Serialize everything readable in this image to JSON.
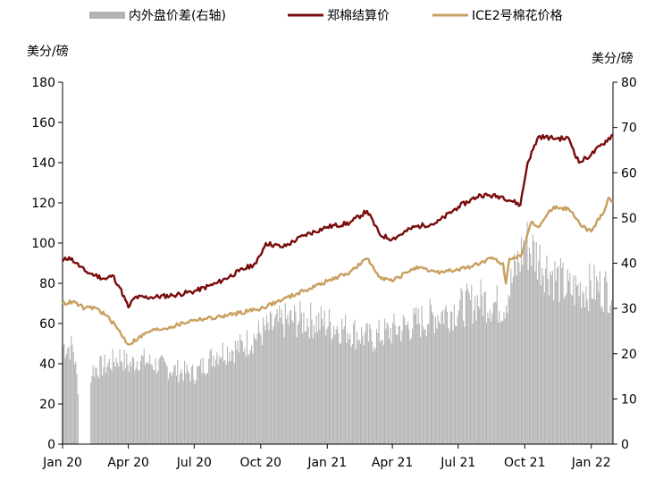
{
  "chart_data": {
    "type": "line",
    "left_unit": "美分/磅",
    "right_unit": "美分/磅",
    "x_ticks": [
      "Jan 20",
      "Apr 20",
      "Jul 20",
      "Oct 20",
      "Jan 21",
      "Apr 21",
      "Jul 21",
      "Oct 21",
      "Jan 22"
    ],
    "y_left": {
      "min": 0,
      "max": 180,
      "step": 20,
      "ticks": [
        "0",
        "20",
        "40",
        "60",
        "80",
        "100",
        "120",
        "140",
        "160",
        "180"
      ]
    },
    "y_right": {
      "min": 0,
      "max": 80,
      "step": 10,
      "ticks": [
        "0",
        "10",
        "20",
        "30",
        "40",
        "50",
        "60",
        "70",
        "80"
      ]
    },
    "x_range": [
      "2020-01-01",
      "2022-01-31"
    ],
    "legend_position": "top",
    "grid": false,
    "series": [
      {
        "name": "内外盘价差(右轴)",
        "type": "bar",
        "axis": "right",
        "color": "#b3b3b3",
        "points": [
          [
            "2020-01-01",
            22.5
          ],
          [
            "2020-01-15",
            22.0
          ],
          [
            "2020-02-01",
            0
          ],
          [
            "2020-02-10",
            17.0
          ],
          [
            "2020-03-01",
            18.0
          ],
          [
            "2020-03-20",
            20.0
          ],
          [
            "2020-04-01",
            18.0
          ],
          [
            "2020-04-15",
            19.5
          ],
          [
            "2020-05-01",
            18.5
          ],
          [
            "2020-06-01",
            17.0
          ],
          [
            "2020-07-01",
            16.0
          ],
          [
            "2020-08-01",
            21.0
          ],
          [
            "2020-09-01",
            22.0
          ],
          [
            "2020-10-01",
            25.5
          ],
          [
            "2020-11-01",
            28.0
          ],
          [
            "2020-12-01",
            28.5
          ],
          [
            "2021-01-01",
            27.5
          ],
          [
            "2021-02-01",
            26.0
          ],
          [
            "2021-03-01",
            24.0
          ],
          [
            "2021-04-01",
            26.0
          ],
          [
            "2021-05-01",
            27.5
          ],
          [
            "2021-06-01",
            29.5
          ],
          [
            "2021-07-01",
            31.0
          ],
          [
            "2021-08-01",
            33.0
          ],
          [
            "2021-09-01",
            31.5
          ],
          [
            "2021-10-01",
            46.0
          ],
          [
            "2021-11-01",
            40.0
          ],
          [
            "2021-12-01",
            35.0
          ],
          [
            "2022-01-01",
            36.0
          ],
          [
            "2022-01-31",
            35.0
          ]
        ]
      },
      {
        "name": "郑棉结算价",
        "type": "line",
        "axis": "left",
        "color": "#7a0c0c",
        "points": [
          [
            "2020-01-01",
            91
          ],
          [
            "2020-01-10",
            93
          ],
          [
            "2020-01-20",
            90
          ],
          [
            "2020-02-01",
            86
          ],
          [
            "2020-02-15",
            84
          ],
          [
            "2020-03-01",
            82
          ],
          [
            "2020-03-10",
            84
          ],
          [
            "2020-03-20",
            78
          ],
          [
            "2020-04-01",
            68
          ],
          [
            "2020-04-10",
            73
          ],
          [
            "2020-05-01",
            73
          ],
          [
            "2020-06-01",
            74
          ],
          [
            "2020-07-01",
            76
          ],
          [
            "2020-08-01",
            80
          ],
          [
            "2020-09-01",
            86
          ],
          [
            "2020-09-25",
            90
          ],
          [
            "2020-10-08",
            100
          ],
          [
            "2020-11-01",
            98
          ],
          [
            "2020-12-01",
            104
          ],
          [
            "2021-01-01",
            108
          ],
          [
            "2021-02-01",
            110
          ],
          [
            "2021-02-25",
            116
          ],
          [
            "2021-03-15",
            104
          ],
          [
            "2021-04-01",
            102
          ],
          [
            "2021-05-01",
            108
          ],
          [
            "2021-06-01",
            110
          ],
          [
            "2021-07-01",
            118
          ],
          [
            "2021-08-01",
            124
          ],
          [
            "2021-09-01",
            123
          ],
          [
            "2021-09-25",
            119
          ],
          [
            "2021-10-05",
            140
          ],
          [
            "2021-10-20",
            153
          ],
          [
            "2021-11-15",
            152
          ],
          [
            "2021-12-01",
            152
          ],
          [
            "2021-12-15",
            140
          ],
          [
            "2022-01-01",
            144
          ],
          [
            "2022-01-31",
            154
          ]
        ]
      },
      {
        "name": "ICE2号棉花价格",
        "type": "line",
        "axis": "right",
        "color": "#c8a060",
        "points": [
          [
            "2020-01-01",
            31
          ],
          [
            "2020-01-15",
            31.5
          ],
          [
            "2020-02-01",
            30
          ],
          [
            "2020-02-15",
            30.2
          ],
          [
            "2020-03-01",
            28.5
          ],
          [
            "2020-03-15",
            26
          ],
          [
            "2020-04-01",
            22
          ],
          [
            "2020-04-15",
            23.5
          ],
          [
            "2020-05-01",
            25
          ],
          [
            "2020-06-01",
            26
          ],
          [
            "2020-07-01",
            27.5
          ],
          [
            "2020-08-01",
            28
          ],
          [
            "2020-09-01",
            29
          ],
          [
            "2020-10-01",
            30
          ],
          [
            "2020-11-01",
            32
          ],
          [
            "2020-12-01",
            34
          ],
          [
            "2021-01-01",
            36
          ],
          [
            "2021-02-01",
            38
          ],
          [
            "2021-02-25",
            41
          ],
          [
            "2021-03-15",
            37
          ],
          [
            "2021-04-01",
            36
          ],
          [
            "2021-05-01",
            39
          ],
          [
            "2021-06-01",
            38
          ],
          [
            "2021-07-01",
            38.5
          ],
          [
            "2021-08-01",
            40
          ],
          [
            "2021-08-15",
            41
          ],
          [
            "2021-09-01",
            40
          ],
          [
            "2021-09-05",
            35.5
          ],
          [
            "2021-09-10",
            41
          ],
          [
            "2021-09-25",
            41.5
          ],
          [
            "2021-10-10",
            49
          ],
          [
            "2021-10-20",
            48
          ],
          [
            "2021-11-10",
            52.5
          ],
          [
            "2021-12-01",
            52
          ],
          [
            "2021-12-10",
            50
          ],
          [
            "2021-12-20",
            48
          ],
          [
            "2022-01-01",
            47
          ],
          [
            "2022-01-20",
            52
          ],
          [
            "2022-01-25",
            54.5
          ],
          [
            "2022-01-31",
            53.5
          ]
        ]
      }
    ]
  }
}
